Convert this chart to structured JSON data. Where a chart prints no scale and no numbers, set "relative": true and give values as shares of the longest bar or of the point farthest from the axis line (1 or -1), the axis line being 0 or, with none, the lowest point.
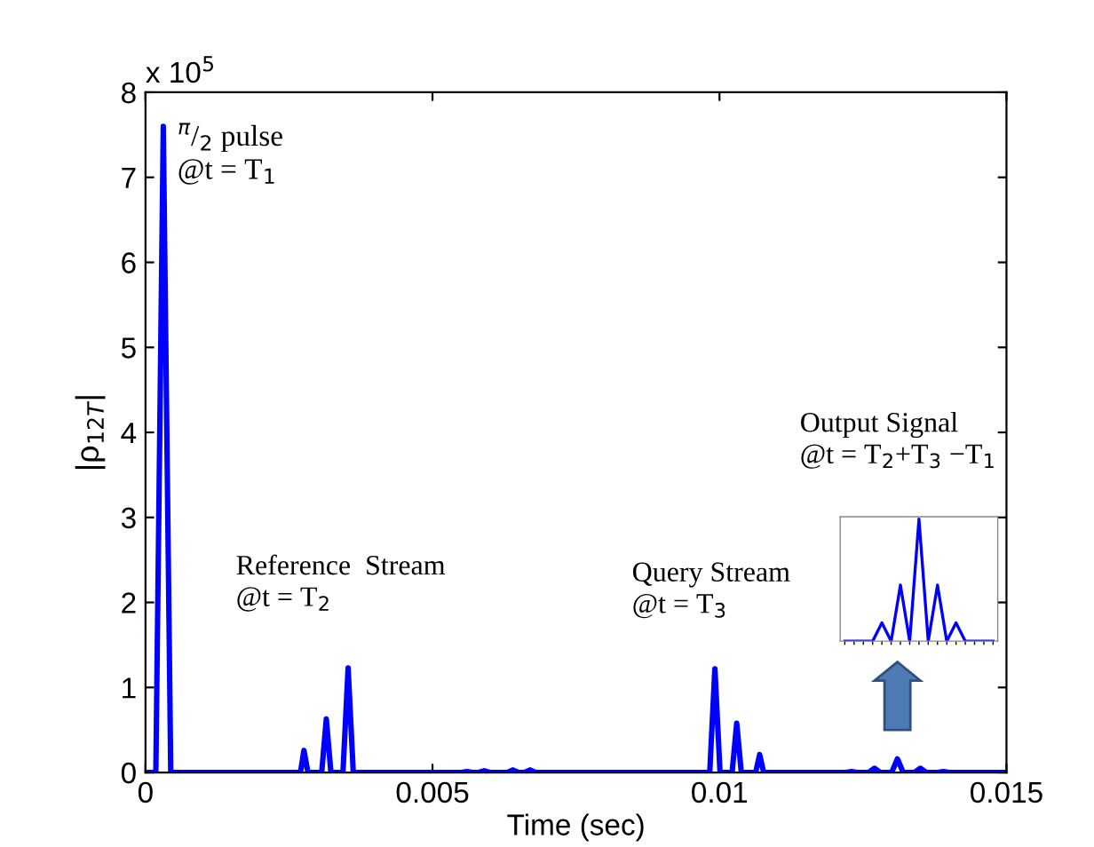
{
  "chart_data": [
    {
      "type": "line",
      "xlabel": "Time (sec)",
      "ylabel": "|ρ$_{12T}$|",
      "series": [
        {
          "color": "#0000ff",
          "x": [
            0,
            0.00018,
            0.00031,
            0.00044,
            0.0027,
            0.00276,
            0.00283,
            0.00307,
            0.00315,
            0.00323,
            0.00344,
            0.00353,
            0.00362,
            0.0055,
            0.0056,
            0.0057,
            0.0058,
            0.0059,
            0.006,
            0.0063,
            0.0064,
            0.0065,
            0.0066,
            0.0067,
            0.0068,
            0.00983,
            0.00992,
            0.01001,
            0.01022,
            0.0103,
            0.01038,
            0.01063,
            0.0107,
            0.01077,
            0.0122,
            0.0123,
            0.0124,
            0.0126,
            0.0127,
            0.0128,
            0.013,
            0.0131,
            0.0132,
            0.0134,
            0.0135,
            0.0136,
            0.0138,
            0.0139,
            0.014,
            0.015
          ],
          "values": [
            0,
            0,
            7.6,
            0,
            0,
            0.26,
            0,
            0,
            0.63,
            0,
            0,
            1.23,
            0,
            0,
            0.01,
            0,
            0,
            0.02,
            0,
            0,
            0.03,
            0,
            0,
            0.03,
            0,
            0,
            1.22,
            0,
            0,
            0.58,
            0,
            0,
            0.21,
            0,
            0,
            0.01,
            0,
            0,
            0.05,
            0,
            0,
            0.16,
            0,
            0,
            0.05,
            0,
            0,
            0.01,
            0,
            0
          ]
        }
      ],
      "xlim": [
        0,
        0.015
      ],
      "xticks": [
        0,
        0.005,
        0.01,
        0.015
      ],
      "ylim": [
        0,
        8
      ],
      "yticks": [
        0,
        1,
        2,
        3,
        4,
        5,
        6,
        7,
        8
      ],
      "annotations": [
        "x 10$^{5}$",
        "$^{π}$/$_{2}$ pulse\n@t = T$_{1}$",
        "Reference  Stream\n@t = T$_{2}$",
        "Query Stream\n@t = T$_{3}$",
        "Output Signal\n@t = T$_{2}$+T$_{3}$ −T$_{1}$"
      ],
      "grid": false,
      "legend": false
    },
    {
      "type": "line",
      "relative": true,
      "tick_labels": false,
      "categories": [
        null,
        null,
        null,
        null,
        null,
        null,
        null,
        null,
        null,
        null,
        null,
        null,
        null,
        null,
        null,
        null,
        null
      ],
      "series": [
        {
          "color": "#0000ff",
          "values": [
            0,
            0,
            0,
            0,
            0.15,
            0,
            0.46,
            0,
            1,
            0,
            0.46,
            0,
            0.15,
            0,
            0,
            0,
            0
          ]
        }
      ]
    }
  ]
}
